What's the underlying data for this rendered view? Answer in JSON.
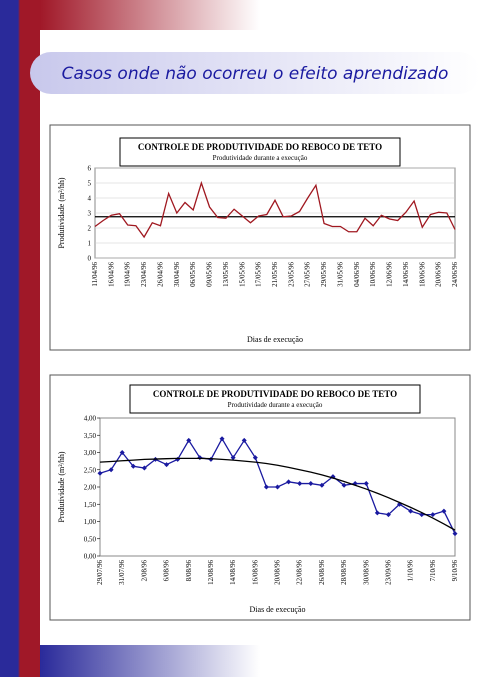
{
  "header": {
    "title": "Casos onde não ocorreu o efeito aprendizado"
  },
  "chart_data": [
    {
      "type": "line",
      "title": "CONTROLE DE PRODUTIVIDADE DO REBOCO DE TETO",
      "subtitle": "Produtividade durante a execução",
      "y_label": "Produtividade (m²/hh)",
      "x_label": "Dias de execução",
      "categories": [
        "11/04/96",
        null,
        "16/04/96",
        null,
        "19/04/96",
        null,
        "23/04/96",
        null,
        "26/04/96",
        null,
        "30/04/96",
        null,
        "06/05/96",
        null,
        "09/05/96",
        null,
        "13/05/96",
        null,
        "15/05/96",
        null,
        "17/05/96",
        null,
        "21/05/96",
        null,
        "23/05/96",
        null,
        "27/05/96",
        null,
        "29/05/96",
        null,
        "31/05/96",
        null,
        "04/06/96",
        null,
        "10/06/96",
        null,
        "12/06/96",
        null,
        "14/06/96",
        null,
        "18/06/96",
        null,
        "20/06/96",
        null,
        "24/06/96"
      ],
      "series": [
        {
          "color": "#a01820",
          "values": [
            2.1,
            2.5,
            2.85,
            2.95,
            2.2,
            2.15,
            1.4,
            2.35,
            2.15,
            4.3,
            3.0,
            3.7,
            3.2,
            5.0,
            3.4,
            2.7,
            2.65,
            3.25,
            2.8,
            2.35,
            2.8,
            2.9,
            3.85,
            2.75,
            2.8,
            3.1,
            4.0,
            4.85,
            2.3,
            2.1,
            2.1,
            1.75,
            1.75,
            2.65,
            2.15,
            2.85,
            2.6,
            2.5,
            3.05,
            3.8,
            2.05,
            2.9,
            3.05,
            3.0,
            1.9
          ]
        }
      ],
      "hline": 2.75,
      "markers": false,
      "ylim": [
        0,
        6
      ],
      "yticks": [
        0,
        1,
        2,
        3,
        4,
        5,
        6
      ],
      "grid": true
    },
    {
      "type": "line",
      "title": "CONTROLE DE PRODUTIVIDADE DO REBOCO DE TETO",
      "subtitle": "Produtividade durante a execução",
      "y_label": "Produtividade (m²/hh)",
      "x_label": "Dias de execução",
      "categories": [
        "29/07/96",
        null,
        "31/07/96",
        null,
        "2/08/96",
        null,
        "6/08/96",
        null,
        "8/08/96",
        null,
        "12/08/96",
        null,
        "14/08/96",
        null,
        "16/08/96",
        null,
        "20/08/96",
        null,
        "22/08/96",
        null,
        "26/08/96",
        null,
        "28/08/96",
        null,
        "30/08/96",
        null,
        "23/09/96",
        null,
        "1/10/96",
        null,
        "7/10/96",
        null,
        "9/10/96"
      ],
      "series": [
        {
          "color": "#1a1aa0",
          "values": [
            2.4,
            2.5,
            3.0,
            2.6,
            2.55,
            2.8,
            2.65,
            2.8,
            3.35,
            2.85,
            2.8,
            3.4,
            2.85,
            3.35,
            2.85,
            2.0,
            2.0,
            2.15,
            2.1,
            2.1,
            2.05,
            2.3,
            2.05,
            2.1,
            2.1,
            1.25,
            1.2,
            1.5,
            1.3,
            1.2,
            1.2,
            1.3,
            0.65
          ]
        },
        {
          "color": "#000000",
          "values": [
            2.72,
            2.74,
            2.76,
            2.78,
            2.8,
            2.81,
            2.82,
            2.83,
            2.83,
            2.83,
            2.82,
            2.8,
            2.78,
            2.75,
            2.72,
            2.68,
            2.63,
            2.57,
            2.5,
            2.43,
            2.35,
            2.26,
            2.16,
            2.05,
            1.94,
            1.82,
            1.69,
            1.55,
            1.41,
            1.26,
            1.1,
            0.93,
            0.75
          ]
        }
      ],
      "markers": true,
      "ylim": [
        0,
        4
      ],
      "yticks": [
        {
          "value": 0,
          "label": "0,00"
        },
        {
          "value": 0.5,
          "label": "0,50"
        },
        {
          "value": 1,
          "label": "1,00"
        },
        {
          "value": 1.5,
          "label": "1,50"
        },
        {
          "value": 2,
          "label": "2,00"
        },
        {
          "value": 2.5,
          "label": "2,50"
        },
        {
          "value": 3,
          "label": "3,00"
        },
        {
          "value": 3.5,
          "label": "3,50"
        },
        {
          "value": 4,
          "label": "4,00"
        }
      ],
      "grid": false
    }
  ]
}
